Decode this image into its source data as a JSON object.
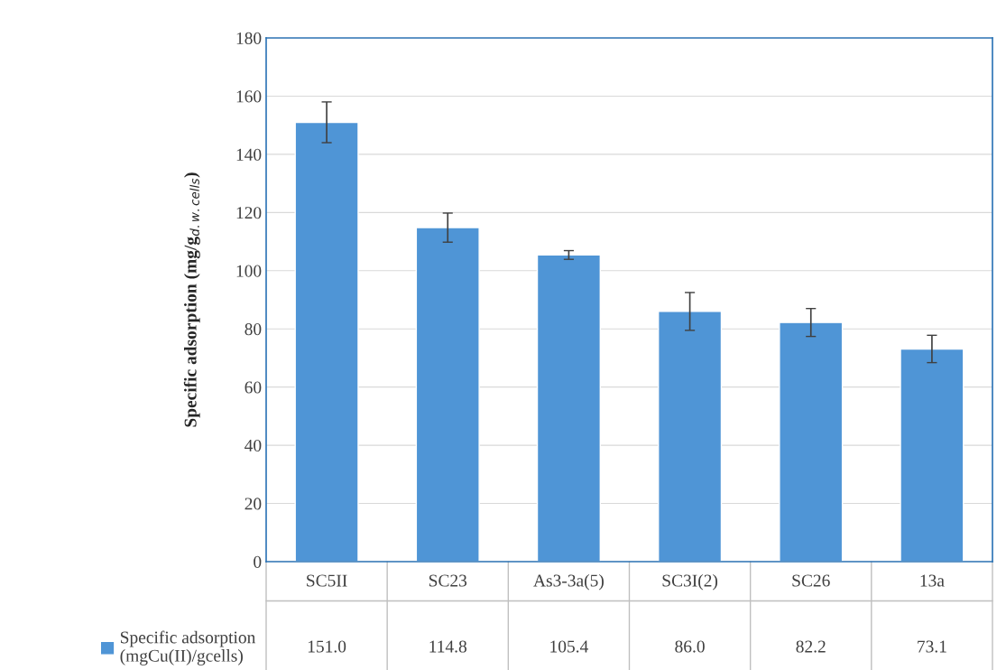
{
  "chart_data": {
    "type": "bar",
    "ylabel": "Specific adsorption (mg/g$_{d.w.cells}$)",
    "categories": [
      "SC5II",
      "SC23",
      "As3-3a(5)",
      "SC3I(2)",
      "SC26",
      "13a"
    ],
    "series": [
      {
        "name": "Specific adsorption\n(mgCu(II)/gcells)",
        "color": "#4f95d6",
        "values": [
          151.0,
          114.8,
          105.4,
          86.0,
          82.2,
          73.1
        ],
        "errors": [
          7.0,
          5.0,
          1.5,
          6.5,
          4.8,
          4.7
        ],
        "value_labels": [
          "151.0",
          "114.8",
          "105.4",
          "86.0",
          "82.2",
          "73.1"
        ]
      }
    ],
    "ylim": [
      0,
      180
    ],
    "yticks": [
      0,
      20,
      40,
      60,
      80,
      100,
      120,
      140,
      160,
      180
    ],
    "grid": "y",
    "legend": "bottom left"
  }
}
